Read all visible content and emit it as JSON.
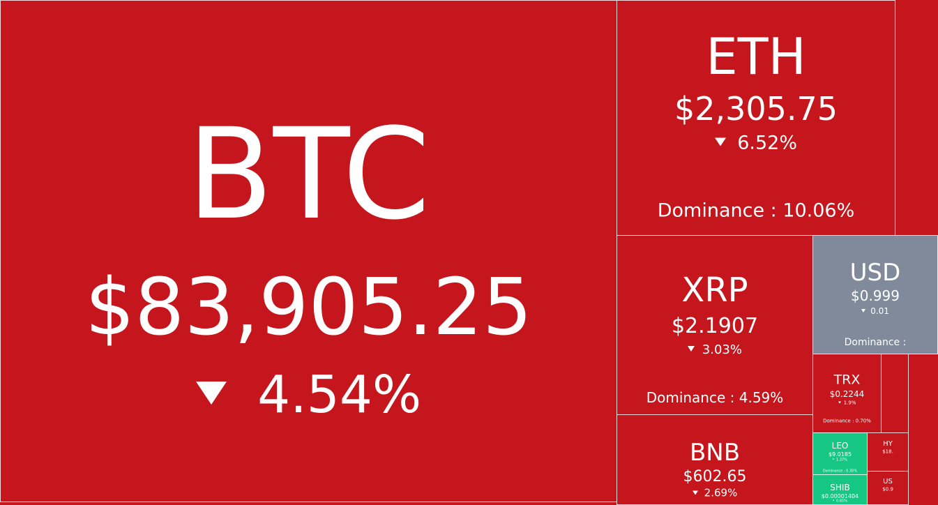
{
  "tiles": [
    {
      "name": "BTC",
      "price": "$83,905.25",
      "change": "4.54%",
      "color": "#c4161c"
    },
    {
      "name": "ETH",
      "price": "$2,305.75",
      "change": "6.52%",
      "dominance": "Dominance : 10.06%",
      "color": "#c4161c"
    },
    {
      "name": "XRP",
      "price": "$2.1907",
      "change": "3.03%",
      "dominance": "Dominance : 4.59%",
      "color": "#c4161c"
    },
    {
      "name": "BNB",
      "price": "$602.65",
      "change": "2.69%",
      "color": "#c4161c"
    },
    {
      "name": "USD",
      "price": "$0.999",
      "change": "0.01",
      "dominance": "Dominance :",
      "color": "#808a9b"
    },
    {
      "name": "TRX",
      "price": "$0.2244",
      "change": "1.9%",
      "dominance": "Dominance : 0.70%",
      "color": "#c4161c"
    },
    {
      "name": "LEO",
      "price": "$9.0185",
      "change": "1.37%",
      "dominance": "Dominance : 0.35%",
      "color": "#16c784"
    },
    {
      "name": "SHIB",
      "price": "$0.00001404",
      "change": "0.65%",
      "color": "#16c784"
    },
    {
      "name": "HY",
      "price": "$18.",
      "color": "#c4161c"
    },
    {
      "name": "US",
      "price": "$0.9",
      "color": "#c4161c"
    },
    {
      "color": "#c4161c"
    }
  ]
}
